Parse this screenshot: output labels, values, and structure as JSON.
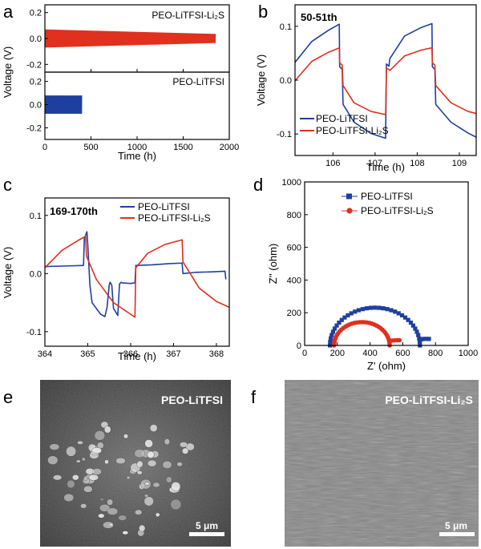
{
  "colors": {
    "blue": "#1f3fa0",
    "red": "#e0301e",
    "sem_dark": "#4a4a4a",
    "sem_light": "#8c8c8c"
  },
  "panels": {
    "a": {
      "label": "a"
    },
    "b": {
      "label": "b"
    },
    "c": {
      "label": "c"
    },
    "d": {
      "label": "d"
    },
    "e": {
      "label": "e",
      "sample": "PEO-LiTFSI",
      "scale_bar": "5 μm"
    },
    "f": {
      "label": "f",
      "sample": "PEO-LiTFSI-Li₂S",
      "scale_bar": "5 μm"
    }
  },
  "chart_data": [
    {
      "panel": "a",
      "type": "line",
      "xlabel": "Time (h)",
      "ylabel": "Voltage (V)",
      "xlim": [
        0,
        2000
      ],
      "xticks": [
        0,
        500,
        1000,
        1500,
        2000
      ],
      "top": {
        "name": "PEO-LiTFSI-Li₂S",
        "ylim": [
          -0.26,
          0.26
        ],
        "yticks": [
          -0.2,
          0.0,
          0.2
        ],
        "t_end": 1850,
        "amplitude_start": 0.07,
        "amplitude_end": 0.035
      },
      "bottom": {
        "name": "PEO-LiTFSI",
        "ylim": [
          -0.3,
          0.28
        ],
        "yticks": [
          -0.2,
          0.0,
          0.2
        ],
        "t_end": 400,
        "amplitude": 0.08
      }
    },
    {
      "panel": "b",
      "type": "line",
      "inset_title": "50-51th",
      "xlabel": "Time (h)",
      "ylabel": "Voltage (V)",
      "xlim": [
        105.1,
        109.4
      ],
      "ylim": [
        -0.14,
        0.14
      ],
      "xticks": [
        106,
        107,
        108,
        109
      ],
      "yticks": [
        -0.1,
        0.0,
        0.1
      ],
      "legend": "bottom-left",
      "series": [
        {
          "name": "PEO-LiTFSI",
          "x": [
            105.1,
            105.5,
            105.9,
            106.15,
            106.16,
            106.22,
            106.24,
            106.5,
            106.9,
            107.25,
            107.27,
            107.33,
            107.35,
            107.7,
            108.1,
            108.35,
            108.36,
            108.42,
            108.44,
            108.8,
            109.2,
            109.4
          ],
          "y": [
            0.033,
            0.072,
            0.093,
            0.104,
            0.025,
            0.02,
            -0.045,
            -0.078,
            -0.099,
            -0.108,
            0.03,
            0.026,
            0.04,
            0.082,
            0.098,
            0.105,
            0.025,
            0.02,
            -0.045,
            -0.078,
            -0.098,
            -0.106
          ]
        },
        {
          "name": "PEO-LiTFSI-Li₂S",
          "x": [
            105.1,
            105.5,
            105.9,
            106.15,
            106.16,
            106.22,
            106.24,
            106.5,
            106.9,
            107.25,
            107.27,
            107.33,
            107.35,
            107.7,
            108.1,
            108.35,
            108.36,
            108.42,
            108.44,
            108.8,
            109.2,
            109.4
          ],
          "y": [
            -0.001,
            0.035,
            0.052,
            0.06,
            0.032,
            0.028,
            -0.01,
            -0.042,
            -0.058,
            -0.064,
            0.022,
            0.02,
            0.018,
            0.045,
            0.056,
            0.06,
            0.032,
            0.028,
            -0.01,
            -0.042,
            -0.058,
            -0.062
          ]
        }
      ]
    },
    {
      "panel": "c",
      "type": "line",
      "inset_title": "169-170th",
      "xlabel": "Time (h)",
      "ylabel": "Voltage (V)",
      "xlim": [
        364,
        368.3
      ],
      "ylim": [
        -0.125,
        0.13
      ],
      "xticks": [
        364,
        365,
        366,
        367,
        368
      ],
      "yticks": [
        -0.1,
        0.0,
        0.1
      ],
      "legend": "top-right",
      "series": [
        {
          "name": "PEO-LiTFSI",
          "x": [
            364,
            364.5,
            364.9,
            364.92,
            364.98,
            365.0,
            365.05,
            365.1,
            365.2,
            365.3,
            365.4,
            365.45,
            365.5,
            365.52,
            365.56,
            365.6,
            365.7,
            365.74,
            365.78,
            365.8,
            366.0,
            366.1,
            366.12,
            366.5,
            366.9,
            367.2,
            367.22,
            367.5,
            367.9,
            368.2,
            368.22
          ],
          "y": [
            0.012,
            0.013,
            0.014,
            0.06,
            0.072,
            0.05,
            -0.02,
            -0.05,
            -0.06,
            -0.07,
            -0.074,
            -0.058,
            -0.02,
            -0.015,
            -0.02,
            -0.06,
            -0.072,
            -0.018,
            -0.015,
            -0.016,
            -0.017,
            -0.016,
            0.014,
            0.015,
            0.017,
            0.018,
            0.0,
            0.002,
            0.003,
            0.004,
            -0.01
          ]
        },
        {
          "name": "PEO-LiTFSI-Li₂S",
          "x": [
            364,
            364.4,
            364.8,
            364.95,
            364.97,
            365.2,
            365.6,
            366.0,
            366.1,
            366.12,
            366.4,
            366.8,
            367.2,
            367.22,
            367.6,
            368.0,
            368.3
          ],
          "y": [
            0.01,
            0.04,
            0.058,
            0.064,
            0.03,
            -0.01,
            -0.05,
            -0.07,
            -0.075,
            0.01,
            0.035,
            0.05,
            0.058,
            0.02,
            -0.025,
            -0.048,
            -0.058
          ]
        }
      ]
    },
    {
      "panel": "d",
      "type": "scatter",
      "xlabel": "Z' (ohm)",
      "ylabel": "Z'' (ohm)",
      "xlim": [
        0,
        1000
      ],
      "ylim": [
        0,
        1000
      ],
      "xticks": [
        0,
        200,
        400,
        600,
        800,
        1000
      ],
      "yticks": [
        0,
        200,
        400,
        600,
        800,
        1000
      ],
      "legend": "top-center",
      "series": [
        {
          "name": "PEO-LiTFSI",
          "marker": "square",
          "center": 430,
          "radius": 275,
          "start": 155,
          "end": 705,
          "tail_x": [
            705,
            715,
            730,
            745,
            760
          ],
          "tail_y": [
            30,
            38,
            40,
            40,
            40
          ]
        },
        {
          "name": "PEO-LiTFSI-Li₂S",
          "marker": "circle",
          "center": 350,
          "radius": 170,
          "start": 180,
          "end": 520,
          "tail_x": [
            520,
            535,
            550,
            565,
            580
          ],
          "tail_y": [
            25,
            30,
            31,
            32,
            32
          ]
        }
      ]
    }
  ]
}
